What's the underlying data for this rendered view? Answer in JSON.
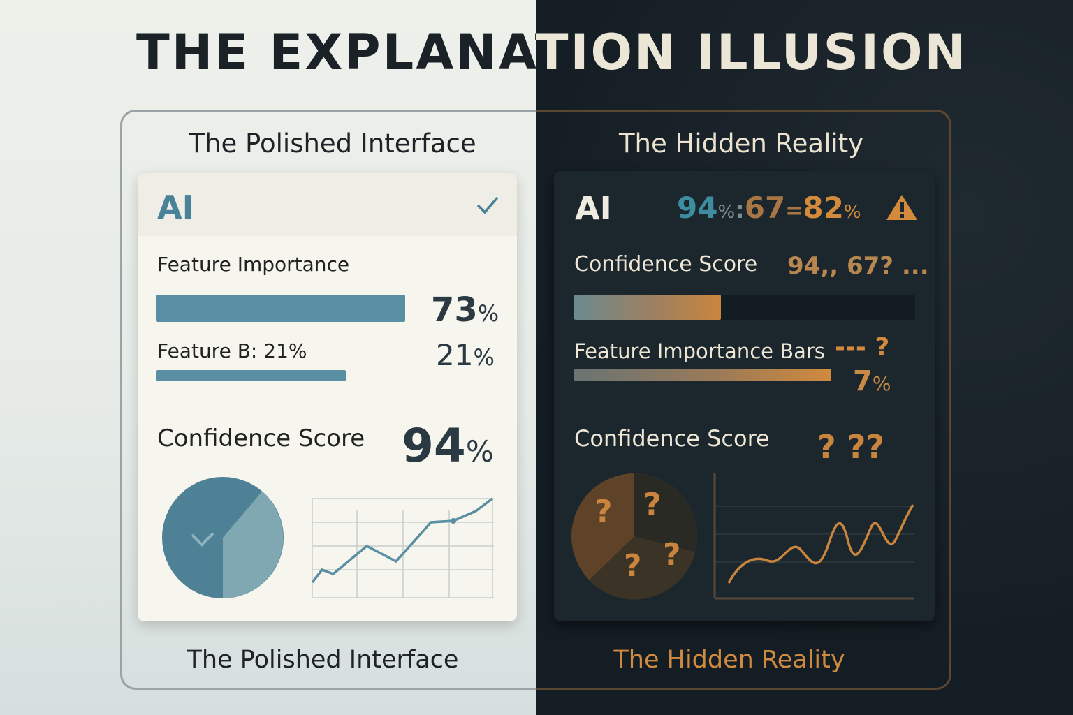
{
  "title": "THE EXPLANATION ILLUSION",
  "left": {
    "heading": "The Polished Interface",
    "footer": "The Polished Interface",
    "card": {
      "logo": "AI",
      "status_icon": "check-icon",
      "feature_importance_label": "Feature Importance",
      "feature_a_value": "73",
      "feature_a_fraction": 0.73,
      "feature_b_label": "Feature B: 21%",
      "feature_b_value": "21",
      "feature_b_fraction": 0.21,
      "percent": "%",
      "confidence_label": "Confidence Score",
      "confidence_value": "94"
    },
    "accent": "#5a8fa3"
  },
  "right": {
    "heading": "The Hidden Reality",
    "footer": "The Hidden Reality",
    "card": {
      "logo": "AI",
      "readout": {
        "v1": "94",
        "sep1": ":",
        "v2": "67",
        "sep2": "=",
        "v3": "82",
        "percent": "%"
      },
      "warning_icon": "warning-icon",
      "confidence_label": "Confidence Score",
      "confidence_values": "94,, 67? ...",
      "confidence_fill": 0.43,
      "feature_label": "Feature Importance Bars",
      "feature_marker": "--- ?",
      "feature_value": "7",
      "percent": "%",
      "confidence_label_2": "Confidence Score",
      "confidence_unknown": "?  ??",
      "pie_marks": [
        "?",
        "?",
        "?",
        "?"
      ]
    },
    "accent": "#d48a3c"
  }
}
